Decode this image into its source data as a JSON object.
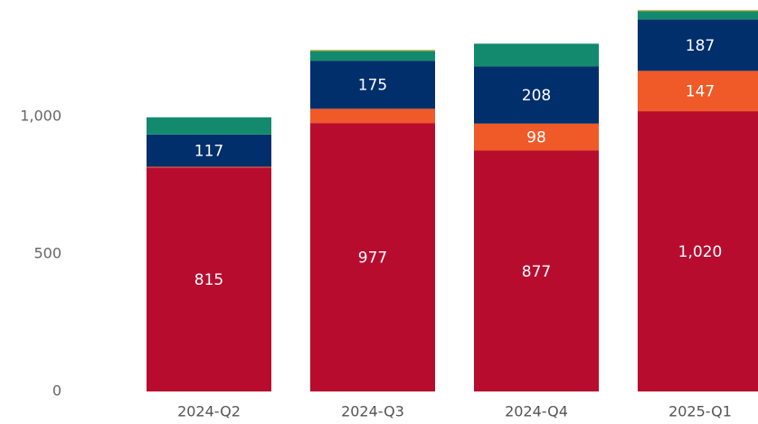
{
  "chart_data": {
    "type": "stacked_bar",
    "categories": [
      "2024-Q2",
      "2024-Q3",
      "2024-Q4",
      "2025-Q1"
    ],
    "series": [
      {
        "color": "#b80c2f",
        "values": [
          815,
          977,
          877,
          1020
        ],
        "value_labels": [
          "815",
          "977",
          "877",
          "1,020"
        ]
      },
      {
        "color": "#ef5a28",
        "values": [
          3,
          52,
          98,
          147
        ],
        "value_labels": [
          null,
          null,
          "98",
          "147"
        ]
      },
      {
        "color": "#002f6c",
        "values": [
          117,
          175,
          208,
          187
        ],
        "value_labels": [
          "117",
          "175",
          "208",
          "187"
        ]
      },
      {
        "color": "#138a6e",
        "values": [
          63,
          36,
          83,
          31
        ]
      },
      {
        "color": "#d8b943",
        "values": [
          0,
          4,
          0,
          4
        ]
      }
    ],
    "ylim": [
      0,
      1425
    ],
    "yticks": [
      0,
      500,
      {
        "value": 1000,
        "label": "1,000"
      }
    ],
    "grid": false
  }
}
